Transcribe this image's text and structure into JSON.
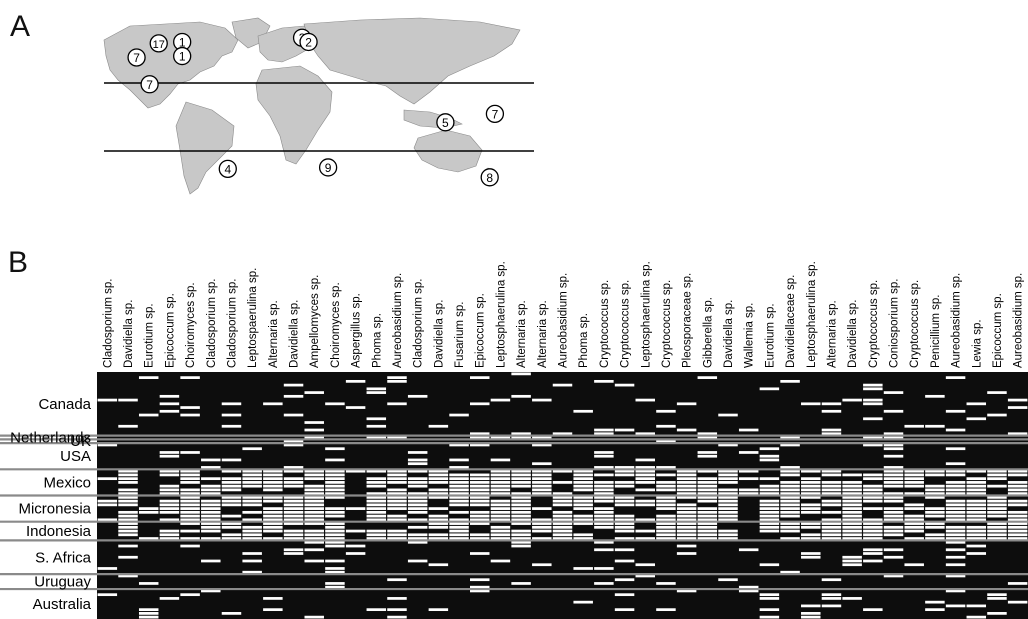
{
  "panel_a": {
    "label": "A",
    "markers": [
      {
        "label": "17",
        "lon": -108,
        "lat": 54
      },
      {
        "label": "1",
        "lon": -90,
        "lat": 55
      },
      {
        "label": "1",
        "lon": -90,
        "lat": 45
      },
      {
        "label": "7",
        "lon": -125,
        "lat": 44
      },
      {
        "label": "7",
        "lon": -115,
        "lat": 25
      },
      {
        "label": "3",
        "lon": 2,
        "lat": 58
      },
      {
        "label": "2",
        "lon": 7,
        "lat": 55
      },
      {
        "label": "5",
        "lon": 112,
        "lat": -2
      },
      {
        "label": "7",
        "lon": 150,
        "lat": 4
      },
      {
        "label": "4",
        "lon": -55,
        "lat": -35
      },
      {
        "label": "9",
        "lon": 22,
        "lat": -34
      },
      {
        "label": "8",
        "lon": 146,
        "lat": -41
      }
    ]
  },
  "panel_b": {
    "label": "B",
    "species": [
      "Cladosporium sp.",
      "Davidiella sp.",
      "Eurotium sp.",
      "Epicoccum sp.",
      "Choiromyces sp.",
      "Cladosporium sp.",
      "Cladosporium sp.",
      "Leptospaerulina sp.",
      "Alternaria sp.",
      "Davidiella sp.",
      "Ampellomyces sp.",
      "Choiromyces sp.",
      "Aspergillus sp.",
      "Phoma sp.",
      "Aureobasidium sp.",
      "Cladosporium sp.",
      "Davidiella sp.",
      "Fusarium sp.",
      "Epicoccum sp.",
      "Leptosphaerulina sp.",
      "Alternaria sp.",
      "Alternaria sp.",
      "Aureobasidium sp.",
      "Phoma sp.",
      "Cryptococcus sp.",
      "Cryptococcus sp.",
      "Leptosphaerulina sp.",
      "Cryptococcus sp.",
      "Pleosporaceae sp.",
      "Gibberella sp.",
      "Davidiella sp.",
      "Wallemia sp.",
      "Eurotium sp.",
      "Davidiellaceae sp.",
      "Leptosphaerulina sp.",
      "Alternaria sp.",
      "Davidiella sp.",
      "Cryptococcus sp.",
      "Coniosporium sp.",
      "Cryptococcus sp.",
      "Penicillium sp.",
      "Aureobasidium sp.",
      "Lewia sp.",
      "Epicoccum sp.",
      "Aureobasidium sp."
    ],
    "regions": [
      {
        "name": "Canada",
        "rows": 17
      },
      {
        "name": "Netherlands",
        "rows": 1
      },
      {
        "name": "UK",
        "rows": 1
      },
      {
        "name": "USA",
        "rows": 7
      },
      {
        "name": "Mexico",
        "rows": 7
      },
      {
        "name": "Micronesia",
        "rows": 7
      },
      {
        "name": "Indonesia",
        "rows": 5
      },
      {
        "name": "S. Africa",
        "rows": 9
      },
      {
        "name": "Uruguay",
        "rows": 4
      },
      {
        "name": "Australia",
        "rows": 8
      }
    ]
  },
  "colors": {
    "present": "#ffffff",
    "absent": "#0d0d0d",
    "separator": "#8a8a8a",
    "land": "#c8c8c8"
  }
}
